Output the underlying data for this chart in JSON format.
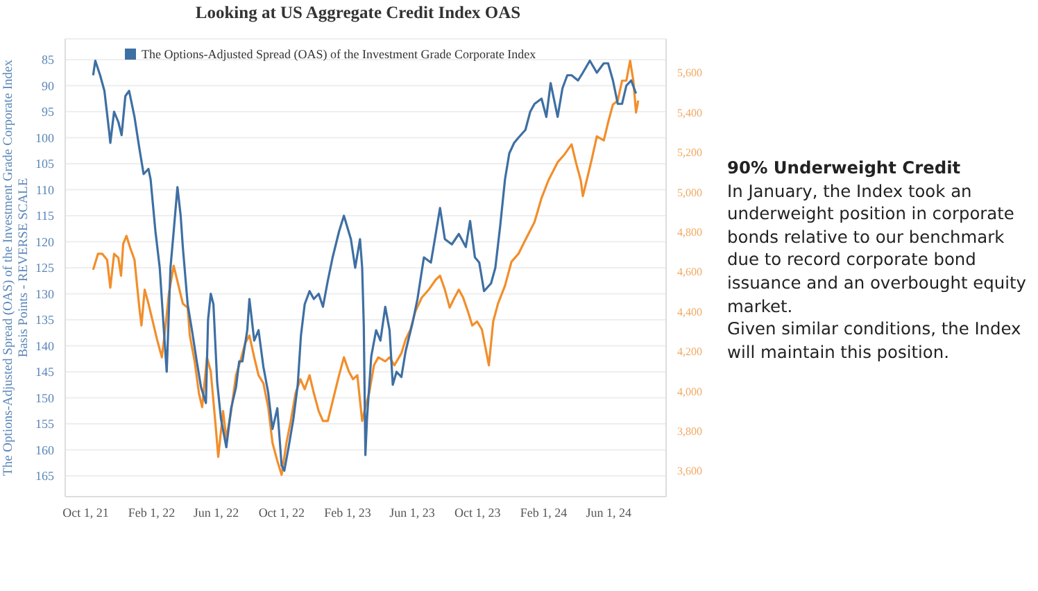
{
  "chart_data": {
    "type": "line",
    "title": "Looking at US Aggregate Credit Index OAS",
    "ylabel": "The Options-Adjusted Spread (OAS) of the Investment Grade Corporate Index\nBasis Points - REVERSE SCALE",
    "annotations": [
      "90% Underweight Credit",
      "In January, the Index took an underweight position in corporate bonds relative to our benchmark due to record corporate bond issuance and an overbought equity market.",
      "Given similar conditions, the Index will maintain this position."
    ],
    "xlim": [
      "2021-08-24",
      "2024-09-16"
    ],
    "xticks": [
      {
        "value": "2021-10-01",
        "label": "Oct 1, 21"
      },
      {
        "value": "2022-02-01",
        "label": "Feb 1, 22"
      },
      {
        "value": "2022-06-01",
        "label": "Jun 1, 22"
      },
      {
        "value": "2022-10-01",
        "label": "Oct 1, 22"
      },
      {
        "value": "2023-02-01",
        "label": "Feb 1, 23"
      },
      {
        "value": "2023-06-01",
        "label": "Jun 1, 23"
      },
      {
        "value": "2023-10-01",
        "label": "Oct 1, 23"
      },
      {
        "value": "2024-02-01",
        "label": "Feb 1, 24"
      },
      {
        "value": "2024-06-01",
        "label": "Jun 1, 24"
      }
    ],
    "ylim": [
      169,
      81
    ],
    "yticks": [
      85,
      90,
      95,
      100,
      105,
      110,
      115,
      120,
      125,
      130,
      135,
      140,
      145,
      150,
      155,
      160,
      165
    ],
    "y2lim": [
      3470,
      5770
    ],
    "y2ticks": [
      {
        "value": 3600,
        "label": "3,600"
      },
      {
        "value": 3800,
        "label": "3,800"
      },
      {
        "value": 4000,
        "label": "4,000"
      },
      {
        "value": 4200,
        "label": "4,200"
      },
      {
        "value": 4400,
        "label": "4,400"
      },
      {
        "value": 4600,
        "label": "4,600"
      },
      {
        "value": 4800,
        "label": "4,800"
      },
      {
        "value": 5000,
        "label": "5,000"
      },
      {
        "value": 5200,
        "label": "5,200"
      },
      {
        "value": 5400,
        "label": "5,400"
      },
      {
        "value": 5600,
        "label": "5,600"
      }
    ],
    "grid": "y",
    "legend": "top left",
    "marker": "none",
    "line_style": "solid",
    "series": [
      {
        "color": "#f28e2b",
        "axis": "y2",
        "x": [
          "2021-10-15",
          "2021-10-24",
          "2021-11-01",
          "2021-11-10",
          "2021-11-16",
          "2021-11-23",
          "2021-12-01",
          "2021-12-06",
          "2021-12-10",
          "2021-12-16",
          "2021-12-23",
          "2021-12-31",
          "2022-01-09",
          "2022-01-13",
          "2022-01-19",
          "2022-01-26",
          "2022-02-03",
          "2022-02-11",
          "2022-02-20",
          "2022-02-27",
          "2022-03-05",
          "2022-03-14",
          "2022-03-23",
          "2022-03-31",
          "2022-04-09",
          "2022-04-13",
          "2022-04-22",
          "2022-04-30",
          "2022-05-06",
          "2022-05-15",
          "2022-05-22",
          "2022-05-31",
          "2022-06-05",
          "2022-06-14",
          "2022-06-20",
          "2022-06-29",
          "2022-07-08",
          "2022-07-16",
          "2022-07-25",
          "2022-08-02",
          "2022-08-11",
          "2022-08-19",
          "2022-08-28",
          "2022-09-06",
          "2022-09-14",
          "2022-09-23",
          "2022-10-01",
          "2022-10-10",
          "2022-10-18",
          "2022-10-27",
          "2022-11-05",
          "2022-11-13",
          "2022-11-22",
          "2022-11-30",
          "2022-12-09",
          "2022-12-17",
          "2022-12-26",
          "2023-01-04",
          "2023-01-16",
          "2023-01-25",
          "2023-02-03",
          "2023-02-11",
          "2023-02-19",
          "2023-02-28",
          "2023-03-06",
          "2023-03-13",
          "2023-03-22",
          "2023-03-30",
          "2023-04-12",
          "2023-04-20",
          "2023-04-29",
          "2023-05-12",
          "2023-05-20",
          "2023-05-29",
          "2023-06-07",
          "2023-06-19",
          "2023-07-02",
          "2023-07-15",
          "2023-07-23",
          "2023-08-01",
          "2023-08-10",
          "2023-08-19",
          "2023-08-27",
          "2023-09-04",
          "2023-09-13",
          "2023-09-21",
          "2023-09-30",
          "2023-10-09",
          "2023-10-22",
          "2023-10-30",
          "2023-11-08",
          "2023-11-21",
          "2023-12-03",
          "2023-12-16",
          "2023-12-29",
          "2024-01-15",
          "2024-01-28",
          "2024-02-10",
          "2024-02-27",
          "2024-03-11",
          "2024-03-24",
          "2024-04-01",
          "2024-04-10",
          "2024-04-14",
          "2024-04-23",
          "2024-05-01",
          "2024-05-10",
          "2024-05-23",
          "2024-05-31",
          "2024-06-09",
          "2024-06-18",
          "2024-06-26",
          "2024-07-04",
          "2024-07-11",
          "2024-07-17",
          "2024-07-22",
          "2024-07-26"
        ],
        "values": [
          4610,
          4690,
          4690,
          4660,
          4520,
          4690,
          4670,
          4580,
          4740,
          4780,
          4720,
          4660,
          4420,
          4330,
          4510,
          4440,
          4350,
          4260,
          4170,
          4330,
          4490,
          4630,
          4530,
          4440,
          4420,
          4280,
          4150,
          3990,
          3920,
          4170,
          4100,
          3830,
          3670,
          3900,
          3760,
          3900,
          4080,
          4150,
          4240,
          4280,
          4170,
          4080,
          4040,
          3920,
          3740,
          3650,
          3580,
          3740,
          3850,
          3990,
          4060,
          4010,
          4080,
          3990,
          3900,
          3850,
          3850,
          3950,
          4080,
          4170,
          4100,
          4060,
          4080,
          3850,
          3920,
          3990,
          4130,
          4170,
          4150,
          4170,
          4130,
          4190,
          4260,
          4310,
          4400,
          4470,
          4510,
          4560,
          4580,
          4510,
          4420,
          4470,
          4510,
          4470,
          4400,
          4330,
          4350,
          4310,
          4130,
          4350,
          4440,
          4530,
          4650,
          4690,
          4760,
          4850,
          4970,
          5060,
          5150,
          5190,
          5240,
          5150,
          5060,
          4980,
          5080,
          5170,
          5280,
          5260,
          5350,
          5440,
          5460,
          5560,
          5560,
          5660,
          5560,
          5400,
          5460
        ]
      },
      {
        "name": "The Options-Adjusted Spread (OAS) of the Investment Grade Corporate Index",
        "color": "#3e6fa3",
        "x": [
          "2021-10-15",
          "2021-10-19",
          "2021-10-28",
          "2021-11-05",
          "2021-11-14",
          "2021-11-16",
          "2021-11-23",
          "2021-12-01",
          "2021-12-07",
          "2021-12-14",
          "2021-12-21",
          "2021-12-31",
          "2022-01-09",
          "2022-01-17",
          "2022-01-26",
          "2022-01-30",
          "2022-02-08",
          "2022-02-16",
          "2022-02-25",
          "2022-03-01",
          "2022-03-08",
          "2022-03-14",
          "2022-03-21",
          "2022-03-27",
          "2022-03-31",
          "2022-04-09",
          "2022-04-17",
          "2022-04-26",
          "2022-05-04",
          "2022-05-13",
          "2022-05-17",
          "2022-05-22",
          "2022-05-27",
          "2022-06-03",
          "2022-06-10",
          "2022-06-20",
          "2022-06-29",
          "2022-07-08",
          "2022-07-14",
          "2022-07-20",
          "2022-07-29",
          "2022-08-02",
          "2022-08-11",
          "2022-08-19",
          "2022-08-28",
          "2022-09-06",
          "2022-09-14",
          "2022-09-23",
          "2022-10-01",
          "2022-10-06",
          "2022-10-14",
          "2022-10-23",
          "2022-10-31",
          "2022-11-06",
          "2022-11-13",
          "2022-11-22",
          "2022-11-30",
          "2022-12-09",
          "2022-12-17",
          "2022-12-26",
          "2023-01-04",
          "2023-01-16",
          "2023-01-25",
          "2023-02-07",
          "2023-02-15",
          "2023-02-24",
          "2023-02-28",
          "2023-03-03",
          "2023-03-06",
          "2023-03-09",
          "2023-03-17",
          "2023-03-26",
          "2023-04-03",
          "2023-04-12",
          "2023-04-20",
          "2023-04-26",
          "2023-05-03",
          "2023-05-12",
          "2023-05-20",
          "2023-06-02",
          "2023-06-11",
          "2023-06-23",
          "2023-07-06",
          "2023-07-15",
          "2023-07-23",
          "2023-08-01",
          "2023-08-14",
          "2023-08-27",
          "2023-09-09",
          "2023-09-17",
          "2023-09-26",
          "2023-10-04",
          "2023-10-13",
          "2023-10-26",
          "2023-11-03",
          "2023-11-12",
          "2023-11-21",
          "2023-11-29",
          "2023-12-08",
          "2023-12-16",
          "2023-12-29",
          "2024-01-07",
          "2024-01-15",
          "2024-01-28",
          "2024-02-06",
          "2024-02-14",
          "2024-02-27",
          "2024-03-07",
          "2024-03-16",
          "2024-03-24",
          "2024-04-05",
          "2024-04-14",
          "2024-04-27",
          "2024-05-10",
          "2024-05-23",
          "2024-05-31",
          "2024-06-09",
          "2024-06-18",
          "2024-06-26",
          "2024-07-04",
          "2024-07-13",
          "2024-07-22"
        ],
        "values": [
          88,
          85.2,
          88,
          91,
          99,
          101,
          95,
          97,
          99.5,
          92,
          91,
          96,
          102,
          107,
          106,
          108,
          118,
          125,
          139,
          145,
          125,
          118,
          109.5,
          115,
          121,
          132,
          137,
          143,
          148,
          151,
          135,
          130,
          132,
          147,
          154,
          159.5,
          152,
          148,
          143,
          143,
          137,
          131,
          139,
          137,
          144,
          149,
          156,
          152,
          163,
          164,
          159.5,
          154,
          147.5,
          138,
          132,
          129.5,
          131,
          130,
          132.5,
          127.5,
          123,
          118,
          115,
          119.5,
          125,
          119.5,
          125,
          136,
          161,
          154,
          142,
          137,
          139,
          132.5,
          137,
          147.5,
          145,
          146,
          141,
          135.5,
          131,
          123,
          124,
          118.5,
          113.5,
          119.5,
          120.5,
          118.5,
          121,
          116,
          123,
          124,
          129.5,
          128,
          125,
          117,
          108,
          103,
          101,
          100,
          98.5,
          95,
          93.5,
          92.5,
          96,
          89.5,
          96,
          90.5,
          88,
          88,
          89,
          87.5,
          85.2,
          87.5,
          85.7,
          85.7,
          89,
          93.5,
          93.5,
          90,
          89,
          91.5
        ]
      }
    ]
  }
}
